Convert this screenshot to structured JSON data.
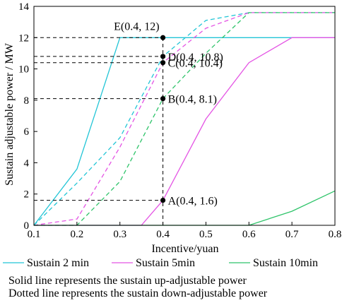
{
  "chart_data": {
    "type": "line",
    "xlabel": "Incentive/yuan",
    "ylabel": "Sustain adjustable power / MW",
    "xlim": [
      0.1,
      0.8
    ],
    "ylim": [
      0,
      14
    ],
    "x_ticks": [
      "0.1",
      "0.2",
      "0.3",
      "0.4",
      "0.5",
      "0.6",
      "0.7",
      "0.8"
    ],
    "y_ticks": [
      "0",
      "2",
      "4",
      "6",
      "8",
      "10",
      "12",
      "14"
    ],
    "x_tick_values": [
      0.1,
      0.2,
      0.3,
      0.4,
      0.5,
      0.6,
      0.7,
      0.8
    ],
    "y_tick_values": [
      0,
      2,
      4,
      6,
      8,
      10,
      12,
      14
    ],
    "grid": false,
    "series": [
      {
        "name": "Sustain 2 min",
        "color": "#22c5d6",
        "style": "solid",
        "points": [
          [
            0.1,
            0
          ],
          [
            0.2,
            3.6
          ],
          [
            0.3,
            12
          ],
          [
            0.8,
            12
          ]
        ]
      },
      {
        "name": "Sustain 2 min",
        "color": "#22c5d6",
        "style": "dashed",
        "points": [
          [
            0.1,
            0
          ],
          [
            0.2,
            2.7
          ],
          [
            0.3,
            5.6
          ],
          [
            0.4,
            10.8
          ],
          [
            0.5,
            13.1
          ],
          [
            0.6,
            13.6
          ],
          [
            0.8,
            13.6
          ]
        ]
      },
      {
        "name": "Sustain 5min",
        "color": "#e454e4",
        "style": "solid",
        "points": [
          [
            0.1,
            0
          ],
          [
            0.35,
            0
          ],
          [
            0.4,
            1.6
          ],
          [
            0.5,
            6.8
          ],
          [
            0.6,
            10.4
          ],
          [
            0.7,
            12
          ],
          [
            0.8,
            12
          ]
        ]
      },
      {
        "name": "Sustain 5min",
        "color": "#e454e4",
        "style": "dashed",
        "points": [
          [
            0.1,
            0
          ],
          [
            0.2,
            0.4
          ],
          [
            0.3,
            5.0
          ],
          [
            0.4,
            10.4
          ],
          [
            0.5,
            12.6
          ],
          [
            0.6,
            13.6
          ],
          [
            0.8,
            13.6
          ]
        ]
      },
      {
        "name": "Sustain 10min",
        "color": "#2fc46a",
        "style": "solid",
        "points": [
          [
            0.1,
            0
          ],
          [
            0.6,
            0
          ],
          [
            0.7,
            0.9
          ],
          [
            0.8,
            2.2
          ]
        ]
      },
      {
        "name": "Sustain 10min",
        "color": "#2fc46a",
        "style": "dashed",
        "points": [
          [
            0.1,
            0
          ],
          [
            0.2,
            0
          ],
          [
            0.3,
            2.8
          ],
          [
            0.4,
            8.1
          ],
          [
            0.5,
            11.0
          ],
          [
            0.6,
            13.6
          ],
          [
            0.8,
            13.6
          ]
        ]
      }
    ],
    "markers": [
      {
        "label": "E(0.4, 12)",
        "x": 0.4,
        "y": 12
      },
      {
        "label": "D(0.4, 10.8)",
        "x": 0.4,
        "y": 10.8
      },
      {
        "label": "C(0.4, 10.4)",
        "x": 0.4,
        "y": 10.4
      },
      {
        "label": "B(0.4, 8.1)",
        "x": 0.4,
        "y": 8.1
      },
      {
        "label": "A(0.4, 1.6)",
        "x": 0.4,
        "y": 1.6
      }
    ],
    "legend": {
      "placement": "bottom",
      "entries": [
        {
          "label": "Sustain 2 min",
          "color": "#22c5d6"
        },
        {
          "label": "Sustain 5min",
          "color": "#e454e4"
        },
        {
          "label": "Sustain 10min",
          "color": "#2fc46a"
        }
      ]
    },
    "notes": [
      "Solid line represents the sustain up-adjustable power",
      "Dotted line represents the sustain down-adjustable power"
    ]
  }
}
